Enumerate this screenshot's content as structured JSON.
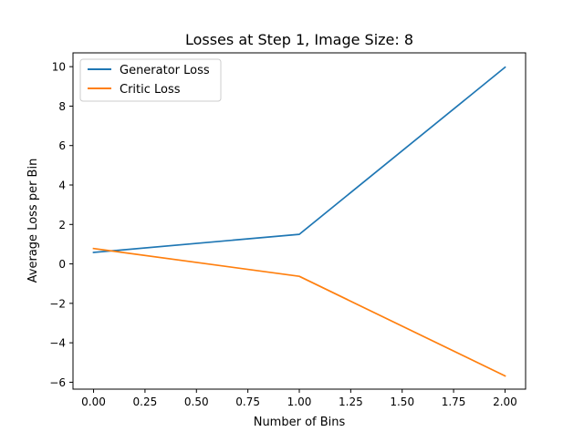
{
  "chart_data": {
    "type": "line",
    "title": "Losses at Step 1, Image Size: 8",
    "xlabel": "Number of Bins",
    "ylabel": "Average Loss per Bin",
    "xlim": [
      -0.1,
      2.1
    ],
    "ylim": [
      -6.35,
      10.7
    ],
    "xticks": [
      0.0,
      0.25,
      0.5,
      0.75,
      1.0,
      1.25,
      1.5,
      1.75,
      2.0
    ],
    "xtick_labels": [
      "0.00",
      "0.25",
      "0.50",
      "0.75",
      "1.00",
      "1.25",
      "1.50",
      "1.75",
      "2.00"
    ],
    "yticks": [
      -6,
      -4,
      -2,
      0,
      2,
      4,
      6,
      8,
      10
    ],
    "ytick_labels": [
      "−6",
      "−4",
      "−2",
      "0",
      "2",
      "4",
      "6",
      "8",
      "10"
    ],
    "grid": false,
    "legend_position": "upper-left",
    "series": [
      {
        "name": "Generator Loss",
        "color": "#1f77b4",
        "x": [
          0,
          1,
          2
        ],
        "y": [
          0.58,
          1.5,
          9.97
        ]
      },
      {
        "name": "Critic Loss",
        "color": "#ff7f0e",
        "x": [
          0,
          1,
          2
        ],
        "y": [
          0.78,
          -0.63,
          -5.68
        ]
      }
    ]
  }
}
